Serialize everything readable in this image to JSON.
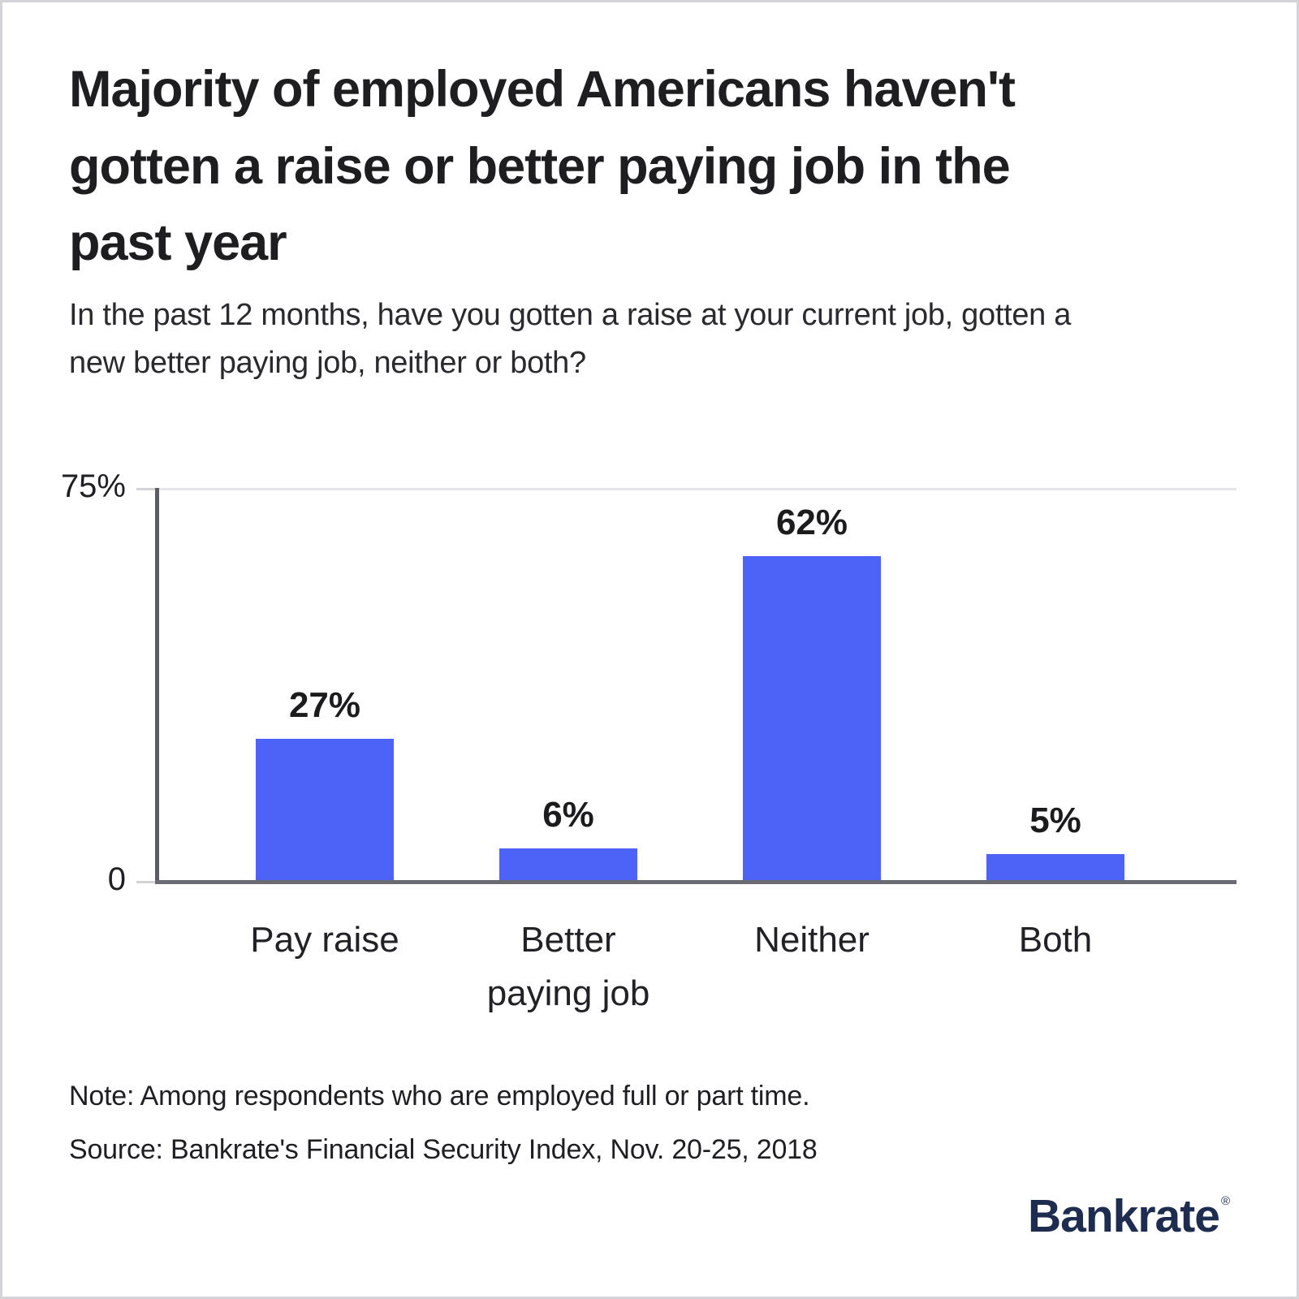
{
  "page": {
    "title": "Majority of employed Americans haven't gotten a raise or better paying job in the past year",
    "title_display": "Majority of employed Americans haven't\ngotten a raise or better paying job in the\npast year",
    "subtitle": "In the past 12 months, have you gotten a raise at your current job, gotten a new better paying job, neither or both?",
    "subtitle_display": "In the past 12 months, have you gotten a raise at your current job, gotten a\nnew better paying job, neither or both?",
    "note": "Note: Among respondents who are employed full or part time.",
    "source": "Source: Bankrate's Financial Security Index, Nov. 20-25, 2018"
  },
  "branding": {
    "logo_text": "Bankrate",
    "registered_mark": "®",
    "logo_color": "#1E2C50"
  },
  "chart_data": {
    "type": "bar",
    "title": "Majority of employed Americans haven't gotten a raise or better paying job in the past year",
    "subtitle": "In the past 12 months, have you gotten a raise at your current job, gotten a new better paying job, neither or both?",
    "categories": [
      "Pay raise",
      "Better paying job",
      "Neither",
      "Both"
    ],
    "category_display": [
      "Pay raise",
      "Better\npaying job",
      "Neither",
      "Both"
    ],
    "values": [
      27,
      6,
      62,
      5
    ],
    "value_labels": [
      "27%",
      "6%",
      "62%",
      "5%"
    ],
    "unit": "percent",
    "xlabel": "",
    "ylabel": "",
    "ylim": [
      0,
      75
    ],
    "ytick_labels": {
      "top": "75%",
      "bottom": "0"
    },
    "legend": "none",
    "grid": "single light gridline at 75% only",
    "bar_color": "#4D63F7",
    "axis_color": "#62626B"
  },
  "colors": {
    "background": "#FFFFFF",
    "page_border": "#D3D3D8",
    "text": "#1F1F23",
    "bar_blue": "#4D63F7",
    "axis_gray": "#62626B",
    "tick_gray": "#D2D2D7",
    "gridline_gray": "#E6E6EA",
    "logo_navy": "#1E2C50"
  }
}
